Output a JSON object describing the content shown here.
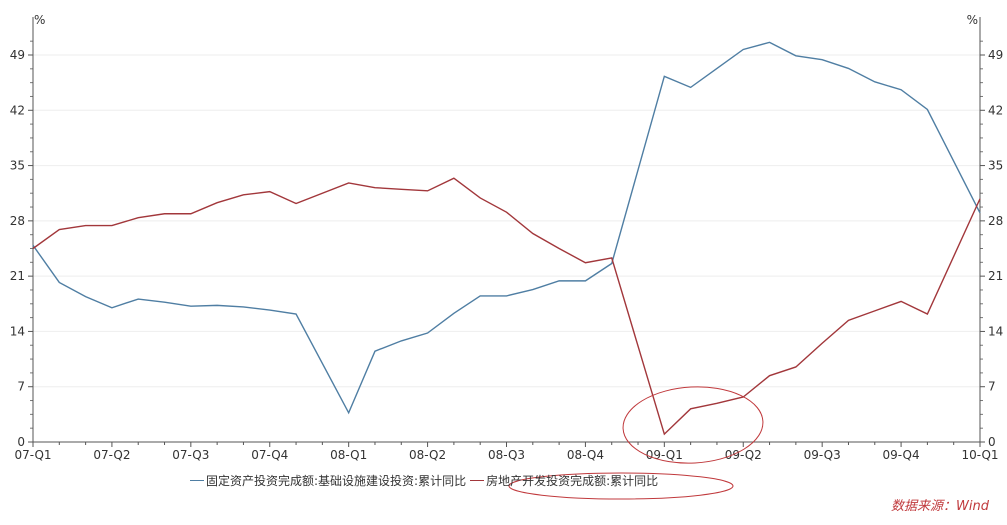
{
  "chart_data": {
    "type": "line",
    "y_unit_left": "%",
    "y_unit_right": "%",
    "ylim": [
      0,
      52
    ],
    "y_ticks": [
      0,
      7,
      14,
      21,
      28,
      35,
      42,
      49
    ],
    "x_tick_labels": [
      "07-Q1",
      "07-Q2",
      "07-Q3",
      "07-Q4",
      "08-Q1",
      "08-Q2",
      "08-Q3",
      "08-Q4",
      "09-Q1",
      "09-Q2",
      "09-Q3",
      "09-Q4",
      "10-Q1"
    ],
    "grid": true,
    "legend_position": "bottom",
    "series": [
      {
        "name": "固定资产投资完成额:基础设施建设投资:累计同比",
        "color": "#4f7ea3",
        "values": [
          24.9,
          20.2,
          18.4,
          17.0,
          18.1,
          17.7,
          17.2,
          17.3,
          17.1,
          16.7,
          16.2,
          null,
          3.7,
          11.5,
          12.8,
          13.8,
          16.3,
          18.5,
          18.5,
          19.3,
          20.4,
          20.4,
          22.6,
          null,
          46.3,
          44.9,
          47.3,
          49.7,
          50.6,
          48.9,
          48.4,
          47.3,
          45.6,
          44.6,
          42.1,
          null,
          29.0
        ]
      },
      {
        "name": "房地产开发投资完成额:累计同比",
        "color": "#a2373b",
        "values": [
          24.5,
          26.9,
          27.4,
          27.4,
          28.4,
          28.9,
          28.9,
          30.3,
          31.3,
          31.7,
          30.2,
          null,
          32.8,
          32.2,
          32.0,
          31.8,
          33.4,
          30.9,
          29.1,
          26.4,
          24.5,
          22.7,
          23.3,
          null,
          1.0,
          4.2,
          4.9,
          5.7,
          8.4,
          9.5,
          12.5,
          15.4,
          16.6,
          17.8,
          16.2,
          null,
          30.8
        ]
      }
    ],
    "annotation_color": "#c0393c"
  },
  "source": "数据来源：Wind"
}
